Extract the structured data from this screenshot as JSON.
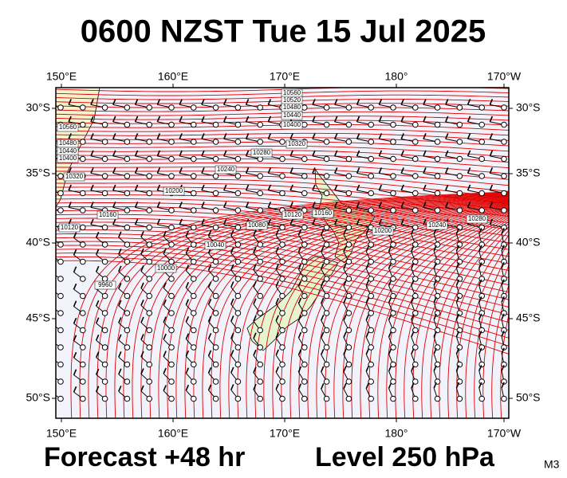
{
  "title": "0600 NZST Tue 15 Jul 2025",
  "axes": {
    "top": [
      "150°E",
      "160°E",
      "170°E",
      "180°",
      "170°W"
    ],
    "bottom": [
      "150°E",
      "160°E",
      "170°E",
      "180°",
      "170°W"
    ],
    "left": [
      "30°S",
      "35°S",
      "40°S",
      "45°S",
      "50°S"
    ],
    "right": [
      "30°S",
      "35°S",
      "40°S",
      "45°S",
      "50°S"
    ]
  },
  "contour_labels": [
    "10560",
    "10520",
    "10480",
    "10440",
    "10400",
    "10320",
    "10280",
    "10240",
    "10200",
    "10160",
    "10120",
    "10080",
    "10040",
    "10000",
    "9960",
    "10560",
    "10480",
    "10440",
    "10400",
    "10320",
    "10120",
    "10160",
    "10200",
    "10240",
    "10280"
  ],
  "footer": {
    "forecast": "Forecast +48 hr",
    "level": "Level 250 hPa",
    "code": "M3"
  }
}
